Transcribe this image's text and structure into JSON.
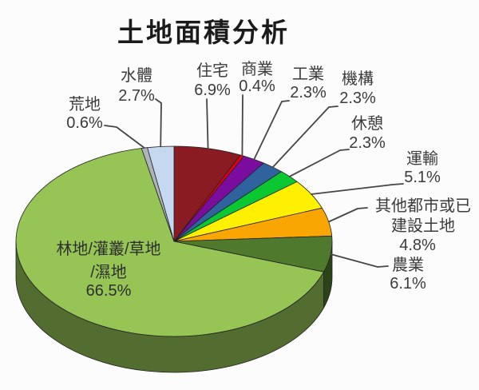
{
  "chart_data": {
    "type": "pie",
    "title": "土地面積分析",
    "unit": "%",
    "style": "3d-pie",
    "rotation": "clockwise-from-top",
    "legend": "none (callout labels)",
    "slices": [
      {
        "label": "住宅",
        "value": 6.9,
        "color": "#8B1B22"
      },
      {
        "label": "商業",
        "value": 0.4,
        "color": "#E80008"
      },
      {
        "label": "工業",
        "value": 2.3,
        "color": "#7B0D9E"
      },
      {
        "label": "機構",
        "value": 2.3,
        "color": "#2F639E"
      },
      {
        "label": "休憩",
        "value": 2.3,
        "color": "#0AC732"
      },
      {
        "label": "運輸",
        "value": 5.1,
        "color": "#FFF000"
      },
      {
        "label": "其他都市或已建設土地",
        "label_lines": [
          "其他都市或已",
          "建設土地"
        ],
        "value": 4.8,
        "color": "#F9A603"
      },
      {
        "label": "農業",
        "value": 6.1,
        "color": "#4F7A2E"
      },
      {
        "label": "林地/灌叢/草地/濕地",
        "label_lines": [
          "林地/灌叢/草地",
          "/濕地"
        ],
        "value": 66.5,
        "color": "#96C556"
      },
      {
        "label": "荒地",
        "value": 0.6,
        "color": "#AEB4B8"
      },
      {
        "label": "水體",
        "value": 2.7,
        "color": "#C6D8F0"
      }
    ]
  }
}
